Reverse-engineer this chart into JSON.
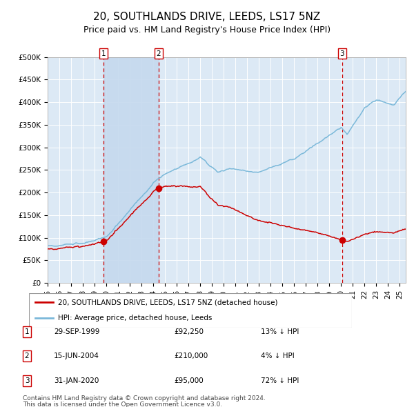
{
  "title": "20, SOUTHLANDS DRIVE, LEEDS, LS17 5NZ",
  "subtitle": "Price paid vs. HM Land Registry's House Price Index (HPI)",
  "title_fontsize": 11,
  "subtitle_fontsize": 9,
  "background_color": "#ffffff",
  "plot_bg_color": "#dce9f5",
  "grid_color": "#ffffff",
  "hpi_line_color": "#7ab8d9",
  "price_line_color": "#cc0000",
  "sale_marker_color": "#cc0000",
  "vline_color": "#cc0000",
  "shade_color": "#c5d9ee",
  "ylim": [
    0,
    500000
  ],
  "yticks": [
    0,
    50000,
    100000,
    150000,
    200000,
    250000,
    300000,
    350000,
    400000,
    450000,
    500000
  ],
  "ytick_labels": [
    "£0",
    "£50K",
    "£100K",
    "£150K",
    "£200K",
    "£250K",
    "£300K",
    "£350K",
    "£400K",
    "£450K",
    "£500K"
  ],
  "xstart_year": 1995.0,
  "xend_year": 2025.5,
  "sale1_year": 1999.75,
  "sale1_price": 92250,
  "sale2_year": 2004.45,
  "sale2_price": 210000,
  "sale3_year": 2020.08,
  "sale3_price": 95000,
  "legend_entries": [
    "20, SOUTHLANDS DRIVE, LEEDS, LS17 5NZ (detached house)",
    "HPI: Average price, detached house, Leeds"
  ],
  "table_rows": [
    {
      "num": "1",
      "date": "29-SEP-1999",
      "price": "£92,250",
      "hpi": "13% ↓ HPI"
    },
    {
      "num": "2",
      "date": "15-JUN-2004",
      "price": "£210,000",
      "hpi": "4% ↓ HPI"
    },
    {
      "num": "3",
      "date": "31-JAN-2020",
      "price": "£95,000",
      "hpi": "72% ↓ HPI"
    }
  ],
  "footnote1": "Contains HM Land Registry data © Crown copyright and database right 2024.",
  "footnote2": "This data is licensed under the Open Government Licence v3.0."
}
